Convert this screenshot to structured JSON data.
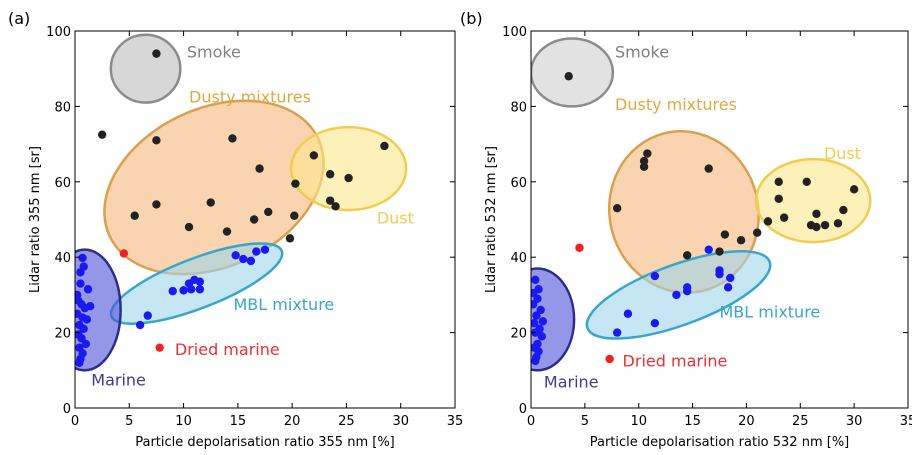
{
  "chart_data": [
    {
      "panel_label": "(a)",
      "type": "scatter",
      "xlabel": "Particle depolarisation ratio 355 nm [%]",
      "ylabel": "Lidar ratio 355 nm [sr]",
      "xlim": [
        0,
        35
      ],
      "ylim": [
        0,
        100
      ],
      "xticks": [
        0,
        5,
        10,
        15,
        20,
        25,
        30,
        35
      ],
      "yticks": [
        0,
        20,
        40,
        60,
        80,
        100
      ],
      "grid": false,
      "regions": [
        {
          "name": "Smoke",
          "cx": 6.5,
          "cy": 90,
          "rx": 3.2,
          "ry": 9,
          "angle": 0,
          "fill": "#bdbdbd",
          "stroke": "#8c8c8c",
          "label_color": "#808080",
          "label_x": 10.3,
          "label_y": 93
        },
        {
          "name": "Dusty mixtures",
          "cx": 12.8,
          "cy": 58.5,
          "rx": 10.6,
          "ry": 21,
          "angle": -25,
          "fill": "#f7b77d",
          "stroke": "#d9a050",
          "label_color": "#e0a840",
          "label_x": 10.5,
          "label_y": 81
        },
        {
          "name": "Dust",
          "cx": 25.2,
          "cy": 63.5,
          "rx": 5.3,
          "ry": 11,
          "angle": 0,
          "fill": "#fbe68a",
          "stroke": "#f2cc50",
          "label_color": "#f2cc50",
          "label_x": 27.8,
          "label_y": 49
        },
        {
          "name": "MBL mixture",
          "cx": 11.2,
          "cy": 33,
          "rx": 8.4,
          "ry": 6.6,
          "angle": -21,
          "fill": "#9fd6ea",
          "stroke": "#3aa5cc",
          "label_color": "#3aa5cc",
          "label_x": 14.6,
          "label_y": 26
        },
        {
          "name": "Marine",
          "cx": 0.9,
          "cy": 26,
          "rx": 3.3,
          "ry": 16,
          "angle": 0,
          "fill": "#4d50d8",
          "stroke": "#2e2e8a",
          "label_color": "#3d3d90",
          "label_x": 1.5,
          "label_y": 6
        },
        {
          "name": "Dried marine",
          "cx": null,
          "cy": null,
          "rx": 0,
          "ry": 0,
          "angle": 0,
          "fill": "none",
          "stroke": "none",
          "label_color": "#e83030",
          "label_x": 9.2,
          "label_y": 14
        }
      ],
      "series": [
        {
          "color": "#222222",
          "points": [
            [
              7.5,
              94
            ],
            [
              2.5,
              72.5
            ],
            [
              7.5,
              71
            ],
            [
              14.5,
              71.5
            ],
            [
              28.5,
              69.5
            ],
            [
              22,
              67
            ],
            [
              17,
              63.5
            ],
            [
              23.5,
              62
            ],
            [
              25.2,
              61
            ],
            [
              20.3,
              59.5
            ],
            [
              23.5,
              55
            ],
            [
              24,
              53.5
            ],
            [
              7.5,
              54
            ],
            [
              12.5,
              54.5
            ],
            [
              5.5,
              51
            ],
            [
              17.8,
              52
            ],
            [
              16.5,
              50
            ],
            [
              20.2,
              51
            ],
            [
              10.5,
              48
            ],
            [
              14,
              46.8
            ],
            [
              19.8,
              45
            ]
          ]
        },
        {
          "color": "#1a1aee",
          "points": [
            [
              0.7,
              39.8
            ],
            [
              0.8,
              37.5
            ],
            [
              0.5,
              36
            ],
            [
              1.2,
              31.5
            ],
            [
              0.3,
              28.5
            ],
            [
              0.6,
              27.5
            ],
            [
              0.9,
              26.5
            ],
            [
              1.4,
              27
            ],
            [
              0.2,
              25
            ],
            [
              0.7,
              24
            ],
            [
              1.1,
              23.5
            ],
            [
              0.4,
              22
            ],
            [
              0.8,
              21
            ],
            [
              0.3,
              19.5
            ],
            [
              0.6,
              18.5
            ],
            [
              1.0,
              17
            ],
            [
              0.4,
              16
            ],
            [
              0.7,
              14.5
            ],
            [
              0.5,
              13
            ],
            [
              0.4,
              12
            ],
            [
              0.2,
              30
            ],
            [
              0.5,
              33
            ],
            [
              16.7,
              41.5
            ],
            [
              17.5,
              42
            ],
            [
              14.8,
              40.5
            ],
            [
              15.5,
              39.5
            ],
            [
              16.2,
              39
            ],
            [
              11,
              34
            ],
            [
              10.5,
              33
            ],
            [
              11.5,
              33.5
            ],
            [
              10.7,
              31.5
            ],
            [
              9,
              31
            ],
            [
              10,
              31.2
            ],
            [
              11.5,
              31.5
            ],
            [
              6,
              22
            ],
            [
              6.7,
              24.5
            ]
          ]
        },
        {
          "color": "#ee2222",
          "points": [
            [
              4.5,
              41
            ],
            [
              7.8,
              16
            ]
          ]
        }
      ]
    },
    {
      "panel_label": "(b)",
      "type": "scatter",
      "xlabel": "Particle depolarisation ratio 532 nm [%]",
      "ylabel": "Lidar ratio 532 nm [sr]",
      "xlim": [
        0,
        35
      ],
      "ylim": [
        0,
        100
      ],
      "xticks": [
        0,
        5,
        10,
        15,
        20,
        25,
        30,
        35
      ],
      "yticks": [
        0,
        20,
        40,
        60,
        80,
        100
      ],
      "grid": false,
      "regions": [
        {
          "name": "Smoke",
          "cx": 3.8,
          "cy": 89,
          "rx": 3.8,
          "ry": 9,
          "angle": 0,
          "fill": "#cfcfcf",
          "stroke": "#8c8c8c",
          "label_color": "#808080",
          "label_x": 7.8,
          "label_y": 93
        },
        {
          "name": "Dusty mixtures",
          "cx": 14.2,
          "cy": 52,
          "rx": 6.9,
          "ry": 21.5,
          "angle": -14,
          "fill": "#f7b77d",
          "stroke": "#d9a050",
          "label_color": "#e0a840",
          "label_x": 7.8,
          "label_y": 79
        },
        {
          "name": "Dust",
          "cx": 26.2,
          "cy": 55,
          "rx": 5.3,
          "ry": 11,
          "angle": 0,
          "fill": "#fbe68a",
          "stroke": "#f2cc50",
          "label_color": "#f2cc50",
          "label_x": 27.2,
          "label_y": 66
        },
        {
          "name": "MBL mixture",
          "cx": 13.7,
          "cy": 30,
          "rx": 9,
          "ry": 8,
          "angle": -20,
          "fill": "#9fd6ea",
          "stroke": "#3aa5cc",
          "label_color": "#3aa5cc",
          "label_x": 17.5,
          "label_y": 24
        },
        {
          "name": "Marine",
          "cx": 0.6,
          "cy": 23.5,
          "rx": 3.4,
          "ry": 13.5,
          "angle": 0,
          "fill": "#4d50d8",
          "stroke": "#2e2e8a",
          "label_color": "#3d3d90",
          "label_x": 1.2,
          "label_y": 5.5
        },
        {
          "name": "Dried marine",
          "cx": null,
          "cy": null,
          "rx": 0,
          "ry": 0,
          "angle": 0,
          "fill": "none",
          "stroke": "none",
          "label_color": "#e83030",
          "label_x": 8.5,
          "label_y": 11
        }
      ],
      "series": [
        {
          "color": "#222222",
          "points": [
            [
              3.5,
              88
            ],
            [
              10.8,
              67.5
            ],
            [
              10.5,
              65.5
            ],
            [
              10.5,
              64
            ],
            [
              16.5,
              63.5
            ],
            [
              8,
              53
            ],
            [
              18,
              46
            ],
            [
              19.5,
              44.5
            ],
            [
              21,
              46.5
            ],
            [
              22,
              49.5
            ],
            [
              14.5,
              40.5
            ],
            [
              17.5,
              41.5
            ],
            [
              23,
              60
            ],
            [
              25.6,
              60
            ],
            [
              30,
              58
            ],
            [
              23,
              55.5
            ],
            [
              26.5,
              51.5
            ],
            [
              29,
              52.5
            ],
            [
              23.5,
              50.5
            ],
            [
              26.5,
              48
            ],
            [
              27.3,
              48.5
            ],
            [
              28.5,
              49
            ],
            [
              26,
              48.5
            ]
          ]
        },
        {
          "color": "#1a1aee",
          "points": [
            [
              0.4,
              34
            ],
            [
              0.6,
              29
            ],
            [
              0.2,
              27.5
            ],
            [
              0.9,
              26
            ],
            [
              0.5,
              24.5
            ],
            [
              1.1,
              23
            ],
            [
              0.3,
              22.5
            ],
            [
              0.8,
              21
            ],
            [
              0.4,
              20
            ],
            [
              1,
              19
            ],
            [
              0.6,
              17
            ],
            [
              0.3,
              16
            ],
            [
              0.7,
              15
            ],
            [
              0.5,
              13.5
            ],
            [
              0.4,
              12.5
            ],
            [
              0.2,
              30.5
            ],
            [
              0.7,
              31.5
            ],
            [
              16.5,
              42
            ],
            [
              17.5,
              36.5
            ],
            [
              18.5,
              34.5
            ],
            [
              17.5,
              35.5
            ],
            [
              18.3,
              32
            ],
            [
              11.5,
              35
            ],
            [
              14.5,
              32
            ],
            [
              14.5,
              31
            ],
            [
              13.5,
              30
            ],
            [
              9,
              25
            ],
            [
              11.5,
              22.5
            ],
            [
              8,
              20
            ]
          ]
        },
        {
          "color": "#ee2222",
          "points": [
            [
              4.5,
              42.5
            ],
            [
              7.3,
              13
            ]
          ]
        }
      ]
    }
  ]
}
